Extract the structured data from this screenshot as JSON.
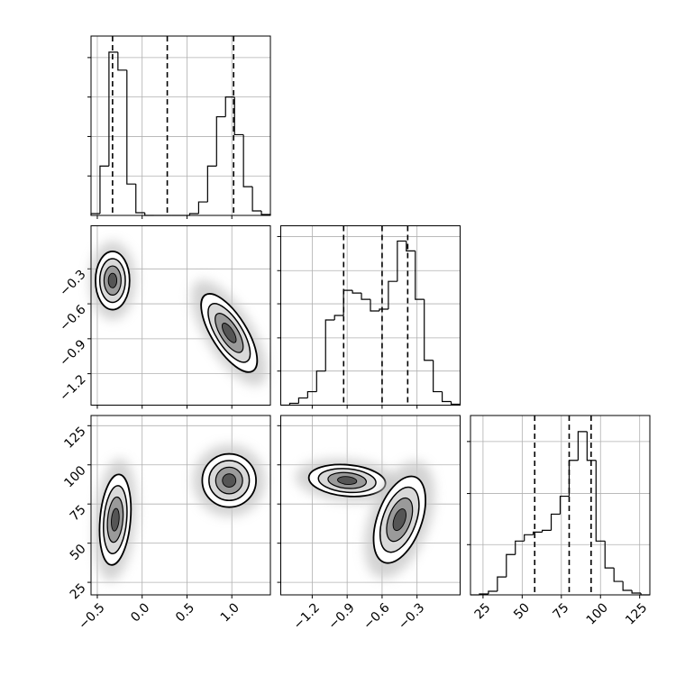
{
  "chart_data": {
    "type": "corner",
    "grid": true,
    "params": [
      {
        "lim": [
          -0.57,
          1.43
        ],
        "ticks": [
          {
            "value": -0.5,
            "label": "−0.5"
          },
          {
            "value": 0,
            "label": "0.0"
          },
          0.5,
          {
            "value": 1,
            "label": "1.0"
          }
        ]
      },
      {
        "lim": [
          -1.47,
          0.07
        ],
        "ticks": [
          {
            "value": -1.2,
            "label": "−1.2"
          },
          {
            "value": -0.9,
            "label": "−0.9"
          },
          {
            "value": -0.6,
            "label": "−0.6"
          },
          {
            "value": -0.3,
            "label": "−0.3"
          }
        ]
      },
      {
        "lim": [
          17,
          131.5
        ],
        "ticks": [
          25,
          50,
          75,
          100,
          125
        ]
      }
    ],
    "histograms": [
      {
        "bins": [
          -0.57,
          -0.47,
          -0.37,
          -0.27,
          -0.17,
          -0.07,
          0.03,
          0.13,
          0.23,
          0.33,
          0.43,
          0.53,
          0.63,
          0.73,
          0.83,
          0.93,
          1.03,
          1.13,
          1.23,
          1.33,
          1.43
        ],
        "counts": [
          2,
          55,
          182,
          162,
          35,
          3,
          0,
          0,
          0,
          0,
          0,
          2,
          15,
          55,
          110,
          132,
          90,
          32,
          5,
          1
        ],
        "quantiles": [
          -0.33,
          0.28,
          1.02
        ],
        "ylim": [
          0,
          200
        ],
        "yticks": [
          44,
          88,
          132,
          176
        ]
      },
      {
        "bins": [
          -1.47,
          -1.393,
          -1.316,
          -1.239,
          -1.162,
          -1.085,
          -1.008,
          -0.931,
          -0.854,
          -0.777,
          -0.7,
          -0.623,
          -0.546,
          -0.469,
          -0.392,
          -0.315,
          -0.238,
          -0.161,
          -0.084,
          -0.007,
          0.07
        ],
        "counts": [
          0,
          2,
          8,
          15,
          38,
          95,
          100,
          128,
          125,
          118,
          105,
          107,
          138,
          183,
          172,
          118,
          50,
          15,
          4,
          1
        ],
        "quantiles": [
          -0.93,
          -0.6,
          -0.38
        ],
        "ylim": [
          0,
          200
        ],
        "yticks": [
          38,
          75,
          113,
          150,
          188
        ]
      },
      {
        "bins": [
          17,
          22.725,
          28.45,
          34.175,
          39.9,
          45.625,
          51.35,
          57.075,
          62.8,
          68.525,
          74.25,
          79.975,
          85.7,
          91.425,
          97.15,
          102.875,
          108.6,
          114.325,
          120.05,
          125.775,
          131.5
        ],
        "counts": [
          0,
          1,
          4,
          20,
          45,
          60,
          67,
          70,
          72,
          90,
          110,
          150,
          182,
          150,
          60,
          30,
          15,
          5,
          2,
          0
        ],
        "quantiles": [
          58,
          80,
          94
        ],
        "ylim": [
          0,
          200
        ],
        "yticks": [
          56,
          113,
          171
        ]
      }
    ],
    "pairs": [
      {
        "blobs": [
          {
            "x": -0.33,
            "y": -0.4,
            "rx": 0.19,
            "ry": 0.25,
            "angle": 0
          },
          {
            "x": 0.97,
            "y": -0.85,
            "rx": 0.5,
            "ry": 0.15,
            "angle": 58
          }
        ]
      },
      {
        "blobs": [
          {
            "x": -0.3,
            "y": 65,
            "rx": 0.17,
            "ry": 29,
            "angle": 5
          },
          {
            "x": 0.97,
            "y": 90,
            "rx": 0.3,
            "ry": 17,
            "angle": 0
          }
        ]
      },
      {
        "blobs": [
          {
            "x": -0.9,
            "y": 90,
            "rx": 0.33,
            "ry": 10,
            "angle": 5
          },
          {
            "x": -0.45,
            "y": 65,
            "rx": 0.19,
            "ry": 29,
            "angle": 20
          }
        ]
      }
    ]
  }
}
